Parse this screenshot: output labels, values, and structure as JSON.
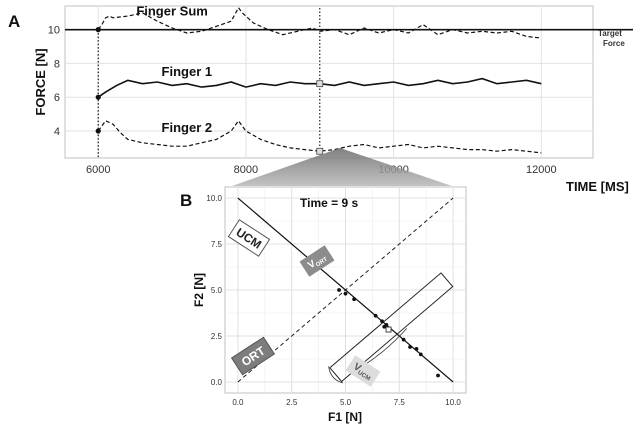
{
  "panel_a": {
    "letter": "A",
    "ylabel": "FORCE [N]",
    "xlabel": "TIME [MS]",
    "x_ticks": [
      "6000",
      "8000",
      "10000",
      "12000"
    ],
    "y_ticks": [
      "4",
      "6",
      "8",
      "10"
    ],
    "target_label_line1": "Target",
    "target_label_line2": "Force"
  },
  "panel_b": {
    "letter": "B",
    "title": "Time = 9 s",
    "xlabel": "F1 [N]",
    "ylabel": "F2 [N]",
    "x_ticks": [
      "0.0",
      "2.5",
      "5.0",
      "7.5",
      "10.0"
    ],
    "y_ticks": [
      "0.0",
      "2.5",
      "5.0",
      "7.5",
      "10.0"
    ],
    "ucm_label": "UCM",
    "ort_label": "ORT",
    "v_ort_main": "V",
    "v_ort_sub": "ORT",
    "v_ucm_main": "V",
    "v_ucm_sub": "UCM"
  },
  "chart_data": [
    {
      "type": "line",
      "xlabel": "TIME [MS]",
      "ylabel": "FORCE [N]",
      "xlim": [
        5550,
        12700
      ],
      "ylim": [
        2.4,
        11.4
      ],
      "grid": true,
      "target": 10,
      "marker_times": [
        6000,
        9000
      ],
      "series": [
        {
          "name": "Finger Sum",
          "style": "dashed",
          "x": [
            6000,
            6050,
            6100,
            6150,
            6200,
            6400,
            6600,
            6800,
            7000,
            7200,
            7400,
            7600,
            7800,
            7900,
            7950,
            8100,
            8300,
            8500,
            8700,
            8900,
            9000,
            9200,
            9400,
            9600,
            9800,
            10000,
            10200,
            10400,
            10600,
            10800,
            11000,
            11200,
            11400,
            11600,
            11800,
            12000
          ],
          "y": [
            10.0,
            10.3,
            10.7,
            10.8,
            10.7,
            10.8,
            11.0,
            10.5,
            10.1,
            9.8,
            9.9,
            10.2,
            10.5,
            11.3,
            11.0,
            10.4,
            10.0,
            9.7,
            9.9,
            10.1,
            9.9,
            10.0,
            9.7,
            10.1,
            9.8,
            10.0,
            9.8,
            10.3,
            9.7,
            10.0,
            9.8,
            9.9,
            9.8,
            9.9,
            9.6,
            9.5
          ]
        },
        {
          "name": "Finger 1",
          "style": "solid",
          "x": [
            6000,
            6100,
            6250,
            6400,
            6600,
            6800,
            7000,
            7200,
            7400,
            7600,
            7800,
            8000,
            8200,
            8400,
            8600,
            8800,
            9000,
            9200,
            9400,
            9600,
            9800,
            10000,
            10200,
            10400,
            10600,
            10800,
            11000,
            11200,
            11400,
            11600,
            11800,
            12000
          ],
          "y": [
            6.0,
            6.3,
            6.7,
            7.0,
            6.8,
            6.9,
            6.7,
            6.8,
            6.6,
            6.7,
            6.9,
            6.6,
            6.8,
            6.7,
            6.9,
            6.8,
            6.8,
            6.7,
            6.9,
            6.7,
            6.8,
            6.9,
            6.7,
            6.8,
            7.0,
            6.8,
            6.9,
            7.1,
            6.8,
            6.9,
            7.0,
            6.8
          ]
        },
        {
          "name": "Finger 2",
          "style": "dashed",
          "x": [
            6000,
            6100,
            6200,
            6300,
            6400,
            6600,
            6800,
            7000,
            7200,
            7400,
            7600,
            7800,
            7900,
            8000,
            8200,
            8400,
            8600,
            8800,
            9000,
            9200,
            9400,
            9600,
            9800,
            10000,
            10200,
            10400,
            10600,
            10800,
            11000,
            11200,
            11400,
            11600,
            11800,
            12000
          ],
          "y": [
            4.0,
            4.6,
            4.4,
            3.9,
            3.5,
            3.3,
            3.2,
            3.1,
            3.1,
            3.3,
            3.5,
            4.0,
            4.6,
            4.0,
            3.5,
            3.2,
            3.0,
            2.9,
            2.8,
            2.9,
            3.1,
            3.2,
            3.0,
            3.1,
            3.2,
            3.0,
            3.1,
            3.0,
            2.9,
            2.9,
            2.8,
            2.9,
            2.8,
            2.7
          ]
        }
      ]
    },
    {
      "type": "scatter",
      "title": "Time = 9 s",
      "xlabel": "F1 [N]",
      "ylabel": "F2 [N]",
      "xlim": [
        -0.6,
        10.6
      ],
      "ylim": [
        -0.6,
        10.6
      ],
      "grid": true,
      "points": [
        {
          "x": 4.7,
          "y": 5.0
        },
        {
          "x": 5.0,
          "y": 4.8
        },
        {
          "x": 5.4,
          "y": 4.5
        },
        {
          "x": 6.4,
          "y": 3.6
        },
        {
          "x": 6.7,
          "y": 3.3
        },
        {
          "x": 6.8,
          "y": 3.0
        },
        {
          "x": 6.9,
          "y": 3.1
        },
        {
          "x": 7.0,
          "y": 2.9
        },
        {
          "x": 7.7,
          "y": 2.3
        },
        {
          "x": 8.0,
          "y": 1.9
        },
        {
          "x": 8.3,
          "y": 1.8
        },
        {
          "x": 8.5,
          "y": 1.5
        },
        {
          "x": 9.3,
          "y": 0.35
        }
      ],
      "mean_point": {
        "x": 7.0,
        "y": 2.85
      },
      "ucm_line": {
        "sum": 10
      },
      "ort_line": {
        "slope": 1
      }
    }
  ]
}
